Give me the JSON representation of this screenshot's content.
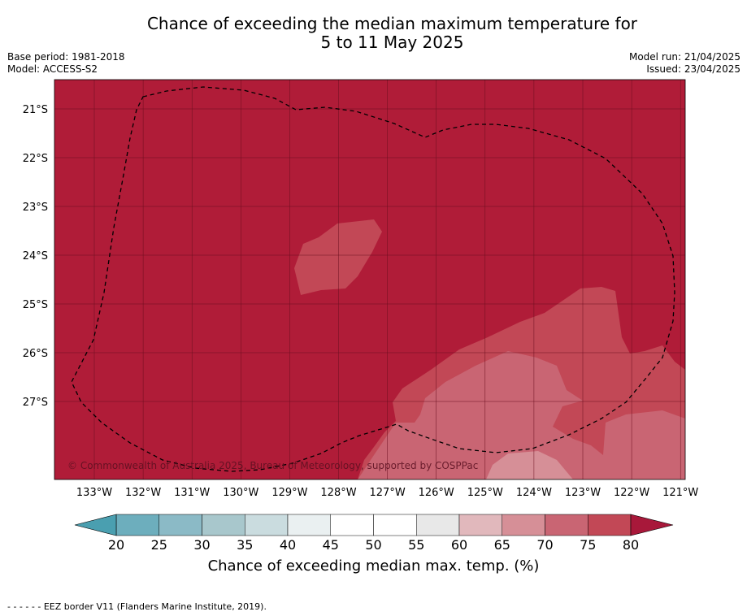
{
  "title": {
    "line1": "Chance of exceeding the median maximum temperature for",
    "line2": "5 to 11 May 2025"
  },
  "meta_left": {
    "base_period": "Base period: 1981-2018",
    "model": "Model: ACCESS-S2"
  },
  "meta_right": {
    "model_run": "Model run: 21/04/2025",
    "issued": "Issued: 23/04/2025"
  },
  "map": {
    "lat_labels": [
      "21°S",
      "22°S",
      "23°S",
      "24°S",
      "25°S",
      "26°S",
      "27°S"
    ],
    "lon_labels": [
      "133°W",
      "132°W",
      "131°W",
      "130°W",
      "129°W",
      "128°W",
      "127°W",
      "126°W",
      "125°W",
      "124°W",
      "123°W",
      "122°W",
      "121°W"
    ],
    "copyright": "© Commonwealth of Australia 2025, Bureau of Meteorology, supported by COSPPac",
    "colors": {
      "c80plus": "#b01c38",
      "c75_80": "#c24856",
      "c70_75": "#c96573",
      "c65_70": "#d68f97"
    }
  },
  "colorbar": {
    "ticks": [
      "20",
      "25",
      "30",
      "35",
      "40",
      "45",
      "50",
      "55",
      "60",
      "65",
      "70",
      "75",
      "80"
    ],
    "colors": [
      "#6daebd",
      "#8bbac6",
      "#a8c7cc",
      "#cadcdf",
      "#eaf0f1",
      "#ffffff",
      "#ffffff",
      "#e8e8e8",
      "#e1b8bc",
      "#d68f97",
      "#c96573",
      "#c24856"
    ],
    "low_color": "#4a9fb0",
    "high_color": "#a8183a",
    "label": "Chance of exceeding median max. temp. (%)"
  },
  "footer": {
    "legend_line": "- -  - -  - -",
    "legend_text": "EEZ border V11 (Flanders Marine Institute, 2019)."
  }
}
